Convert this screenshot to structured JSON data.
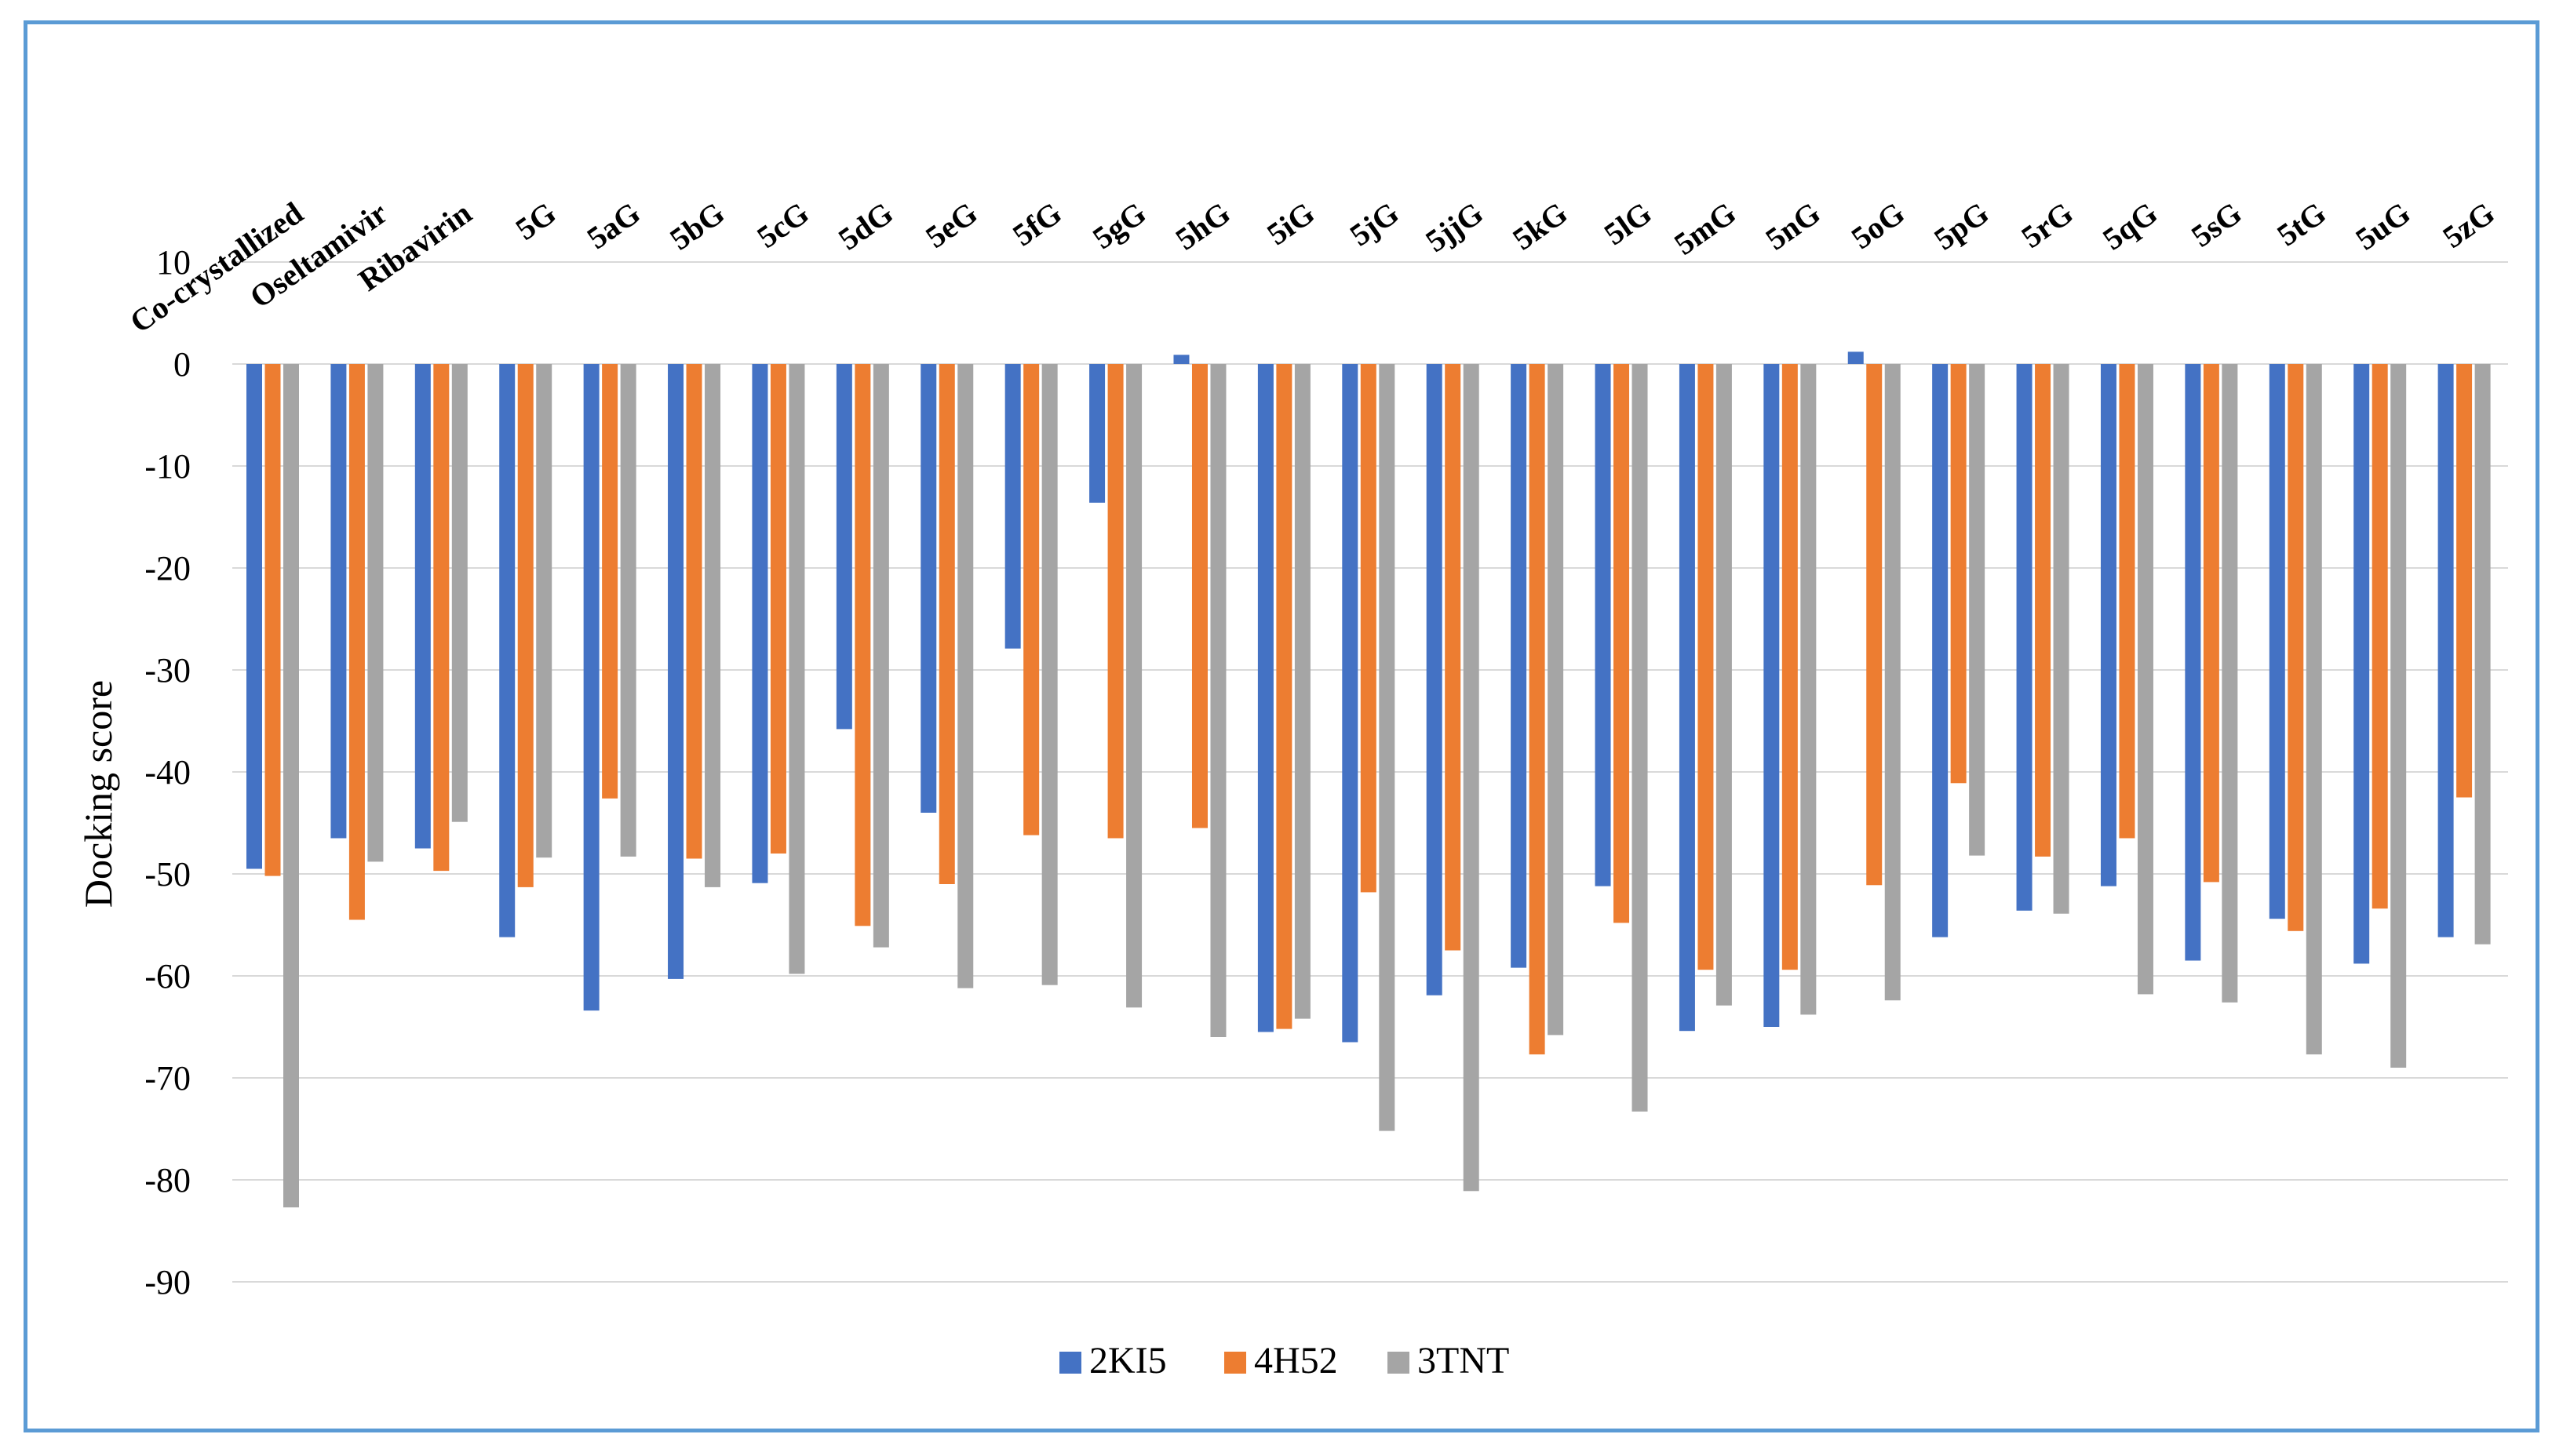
{
  "chart_data": {
    "type": "bar",
    "title": "",
    "xlabel": "",
    "ylabel": "Docking score",
    "ylim": [
      -90,
      10
    ],
    "yticks": [
      10,
      0,
      -10,
      -20,
      -30,
      -40,
      -50,
      -60,
      -70,
      -80,
      -90
    ],
    "grid": true,
    "legend_position": "bottom-center",
    "categories": [
      "Co-crystallized",
      "Oseltamivir",
      "Ribavirin",
      "5G",
      "5aG",
      "5bG",
      "5cG",
      "5dG",
      "5eG",
      "5fG",
      "5gG",
      "5hG",
      "5iG",
      "5jG",
      "5jjG",
      "5kG",
      "5lG",
      "5mG",
      "5nG",
      "5oG",
      "5pG",
      "5rG",
      "5qG",
      "5sG",
      "5tG",
      "5uG",
      "5zG"
    ],
    "series": [
      {
        "name": "2KI5",
        "color": "#4472c4",
        "values": [
          -49.5,
          -46.5,
          -47.5,
          -56.2,
          -63.4,
          -60.3,
          -50.9,
          -35.8,
          -44.0,
          -27.9,
          -13.6,
          0.9,
          -65.5,
          -66.5,
          -61.9,
          -59.2,
          -51.2,
          -65.4,
          -65.0,
          1.2,
          -56.2,
          -53.6,
          -51.2,
          -58.5,
          -54.4,
          -58.8,
          -56.2
        ]
      },
      {
        "name": "4H52",
        "color": "#ed7d31",
        "values": [
          -50.2,
          -54.5,
          -49.7,
          -51.3,
          -42.6,
          -48.5,
          -48.0,
          -55.1,
          -51.0,
          -46.2,
          -46.5,
          -45.5,
          -65.2,
          -51.8,
          -57.5,
          -67.7,
          -54.8,
          -59.4,
          -59.4,
          -51.1,
          -41.1,
          -48.3,
          -46.5,
          -50.8,
          -55.6,
          -53.4,
          -42.5
        ]
      },
      {
        "name": "3TNT",
        "color": "#a5a5a5",
        "values": [
          -82.7,
          -48.8,
          -44.9,
          -48.4,
          -48.3,
          -51.3,
          -59.8,
          -57.2,
          -61.2,
          -60.9,
          -63.1,
          -66.0,
          -64.2,
          -75.2,
          -81.1,
          -65.8,
          -73.3,
          -62.9,
          -63.8,
          -62.4,
          -48.2,
          -53.9,
          -61.8,
          -62.6,
          -67.7,
          -69.0,
          -56.9
        ]
      }
    ]
  }
}
